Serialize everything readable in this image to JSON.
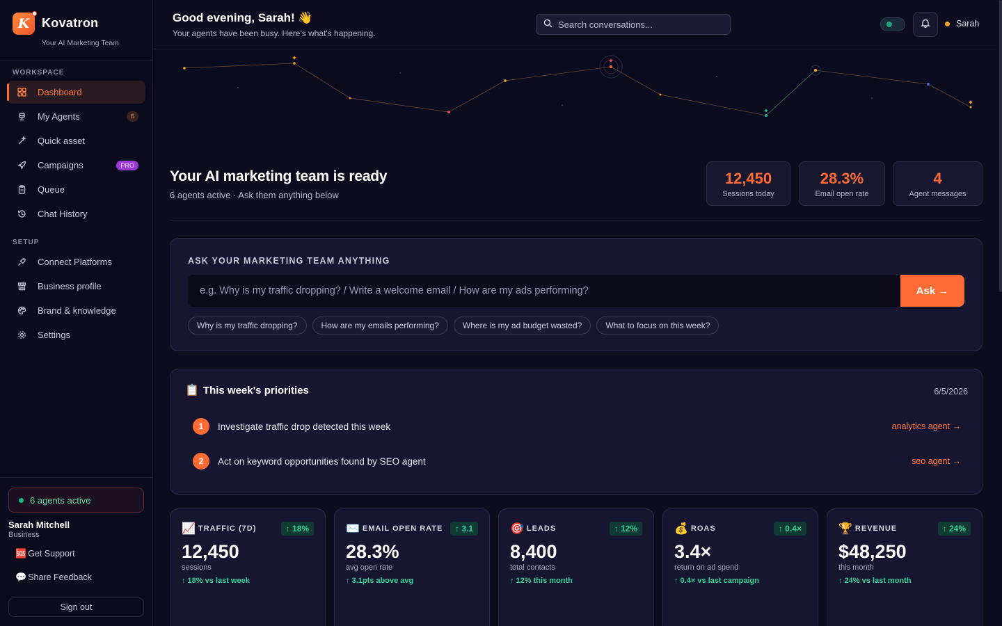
{
  "brand": {
    "name": "Kovatron",
    "logo_letter": "K",
    "tagline": "Your AI Marketing Team"
  },
  "sidebar": {
    "workspace_label": "WORKSPACE",
    "workspace_items": [
      {
        "label": "Dashboard",
        "icon": "grid-icon",
        "active": true
      },
      {
        "label": "My Agents",
        "icon": "robot-icon",
        "badge": "6"
      },
      {
        "label": "Quick asset",
        "icon": "magic-wand-icon"
      },
      {
        "label": "Campaigns",
        "icon": "rocket-icon",
        "badge": "PRO"
      },
      {
        "label": "Queue",
        "icon": "clipboard-icon"
      },
      {
        "label": "Chat History",
        "icon": "history-icon"
      }
    ],
    "setup_label": "SETUP",
    "setup_items": [
      {
        "label": "Connect Platforms",
        "icon": "plug-icon"
      },
      {
        "label": "Business profile",
        "icon": "store-icon"
      },
      {
        "label": "Brand & knowledge",
        "icon": "palette-icon"
      },
      {
        "label": "Settings",
        "icon": "gear-icon"
      }
    ],
    "agents_active": "6 agents active",
    "user_name": "Sarah Mitchell",
    "user_plan": "Business",
    "support_label": "Get Support",
    "feedback_label": "Share Feedback",
    "signout_label": "Sign out"
  },
  "header": {
    "greeting": "Good evening, Sarah! 👋",
    "subtitle": "Your agents have been busy. Here's what's happening.",
    "search_placeholder": "Search conversations...",
    "user_short": "Sarah"
  },
  "hero": {
    "title": "Your AI marketing team is ready",
    "subtitle": "6 agents active · Ask them anything below",
    "stats": [
      {
        "value": "12,450",
        "label": "Sessions today"
      },
      {
        "value": "28.3%",
        "label": "Email open rate"
      },
      {
        "value": "4",
        "label": "Agent messages"
      }
    ]
  },
  "ask": {
    "heading": "ASK YOUR MARKETING TEAM ANYTHING",
    "placeholder": "e.g. Why is my traffic dropping? / Write a welcome email / How are my ads performing?",
    "button_label": "Ask →",
    "suggestions": [
      "Why is my traffic dropping?",
      "How are my emails performing?",
      "Where is my ad budget wasted?",
      "What to focus on this week?"
    ]
  },
  "priorities": {
    "heading": "This week's priorities",
    "date": "6/5/2026",
    "items": [
      {
        "num": "1",
        "text": "Investigate traffic drop detected this week",
        "link": "analytics agent →"
      },
      {
        "num": "2",
        "text": "Act on keyword opportunities found by SEO agent",
        "link": "seo agent →"
      }
    ]
  },
  "kpis": [
    {
      "emoji": "📈",
      "label": "TRAFFIC (7D)",
      "delta": "↑ 18%",
      "value": "12,450",
      "unit": "sessions",
      "trend": "↑ 18% vs last week"
    },
    {
      "emoji": "✉️",
      "label": "EMAIL OPEN RATE",
      "delta": "↑ 3.1",
      "value": "28.3%",
      "unit": "avg open rate",
      "trend": "↑ 3.1pts above avg"
    },
    {
      "emoji": "🎯",
      "label": "LEADS",
      "delta": "↑ 12%",
      "value": "8,400",
      "unit": "total contacts",
      "trend": "↑ 12% this month"
    },
    {
      "emoji": "💰",
      "label": "ROAS",
      "delta": "↑ 0.4×",
      "value": "3.4×",
      "unit": "return on ad spend",
      "trend": "↑ 0.4× vs last campaign"
    },
    {
      "emoji": "🏆",
      "label": "REVENUE",
      "delta": "↑ 24%",
      "value": "$48,250",
      "unit": "this month",
      "trend": "↑ 24% vs last month"
    }
  ],
  "colors": {
    "accent": "#ff6b35",
    "positive": "#2fd39a",
    "background": "#0d0d1f",
    "card": "#161630"
  }
}
